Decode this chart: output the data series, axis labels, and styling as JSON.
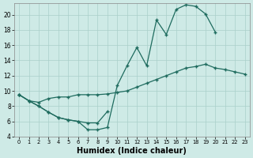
{
  "xlabel": "Humidex (Indice chaleur)",
  "bg_color": "#ceeae6",
  "grid_color": "#aacfca",
  "line_color": "#1e6b5e",
  "xlim": [
    -0.5,
    23.5
  ],
  "ylim": [
    4,
    21.5
  ],
  "xticks": [
    0,
    1,
    2,
    3,
    4,
    5,
    6,
    7,
    8,
    9,
    10,
    11,
    12,
    13,
    14,
    15,
    16,
    17,
    18,
    19,
    20,
    21,
    22,
    23
  ],
  "yticks": [
    4,
    6,
    8,
    10,
    12,
    14,
    16,
    18,
    20
  ],
  "line1_y": [
    9.5,
    8.7,
    8.0,
    7.2,
    6.5,
    6.2,
    6.0,
    4.9,
    4.9,
    5.2,
    10.7,
    13.3,
    15.7,
    13.3,
    19.3,
    17.4,
    20.7,
    21.3,
    21.1,
    20.1,
    17.7,
    null,
    null,
    null
  ],
  "line2_y": [
    9.5,
    8.7,
    8.0,
    7.2,
    6.5,
    6.2,
    6.0,
    5.8,
    5.8,
    7.3,
    null,
    null,
    null,
    null,
    null,
    null,
    null,
    null,
    null,
    null,
    null,
    null,
    null,
    null
  ],
  "line3_y": [
    9.5,
    8.7,
    8.5,
    9.0,
    9.2,
    9.2,
    9.5,
    9.5,
    9.5,
    9.6,
    9.8,
    10.0,
    10.5,
    11.0,
    11.5,
    12.0,
    12.5,
    13.0,
    13.2,
    13.5,
    13.0,
    12.8,
    12.5,
    12.2
  ]
}
